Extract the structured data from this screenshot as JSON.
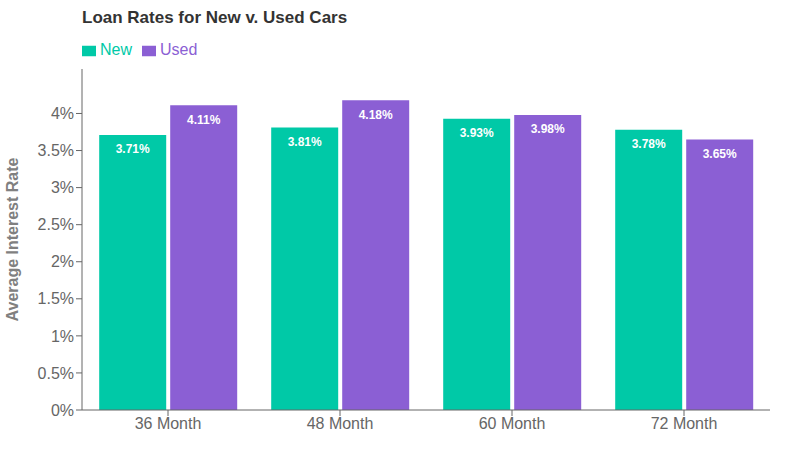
{
  "chart_data": {
    "type": "bar",
    "title": "Loan Rates for New v. Used Cars",
    "ylabel": "Average Interest Rate",
    "categories": [
      "36 Month",
      "48 Month",
      "60 Month",
      "72 Month"
    ],
    "series": [
      {
        "name": "New",
        "color": "#00c9a7",
        "values": [
          3.71,
          3.81,
          3.93,
          3.78
        ],
        "value_labels": [
          "3.71%",
          "3.81%",
          "3.93%",
          "3.78%"
        ]
      },
      {
        "name": "Used",
        "color": "#8b5fd4",
        "values": [
          4.11,
          4.18,
          3.98,
          3.65
        ],
        "value_labels": [
          "4.11%",
          "4.18%",
          "3.98%",
          "3.65%"
        ]
      }
    ],
    "ylim": [
      0,
      4.6
    ],
    "yticks": [
      {
        "value": 0,
        "label": "0%"
      },
      {
        "value": 0.5,
        "label": "0.5%"
      },
      {
        "value": 1.0,
        "label": "1%"
      },
      {
        "value": 1.5,
        "label": "1.5%"
      },
      {
        "value": 2.0,
        "label": "2%"
      },
      {
        "value": 2.5,
        "label": "2.5%"
      },
      {
        "value": 3.0,
        "label": "3%"
      },
      {
        "value": 3.5,
        "label": "3.5%"
      },
      {
        "value": 4.0,
        "label": "4%"
      }
    ],
    "grid": false,
    "legend": "upper left",
    "data_labels": true
  }
}
